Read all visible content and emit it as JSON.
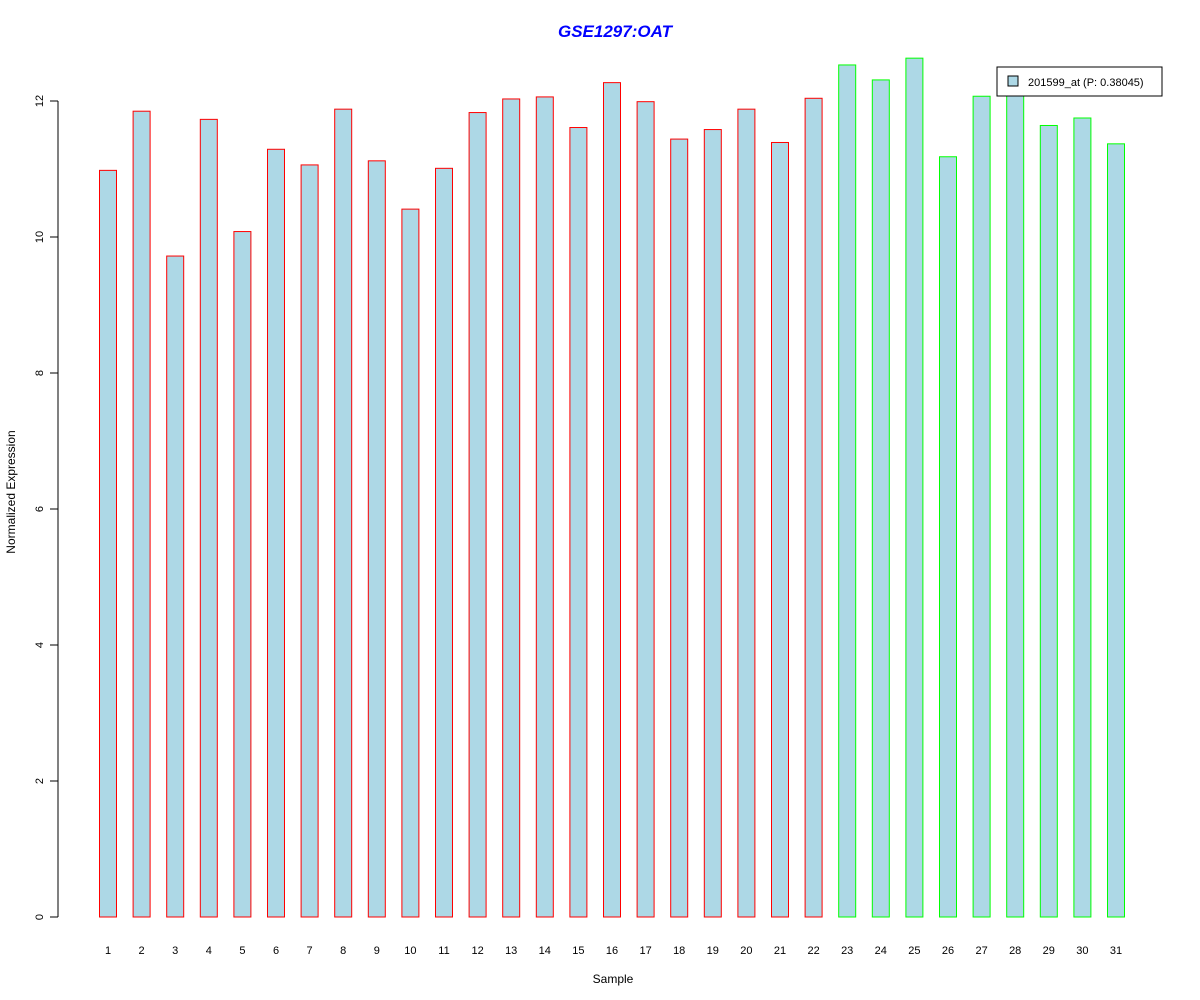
{
  "chart_data": {
    "type": "bar",
    "title": "GSE1297:OAT",
    "xlabel": "Sample",
    "ylabel": "Normalized Expression",
    "ylim": [
      0,
      12.7
    ],
    "yticks": [
      0,
      2,
      4,
      6,
      8,
      10,
      12
    ],
    "categories": [
      "1",
      "2",
      "3",
      "4",
      "5",
      "6",
      "7",
      "8",
      "9",
      "10",
      "11",
      "12",
      "13",
      "14",
      "15",
      "16",
      "17",
      "18",
      "19",
      "20",
      "21",
      "22",
      "23",
      "24",
      "25",
      "26",
      "27",
      "28",
      "29",
      "30",
      "31"
    ],
    "values": [
      10.98,
      11.85,
      9.72,
      11.73,
      10.08,
      11.29,
      11.06,
      11.88,
      11.12,
      10.41,
      11.01,
      11.83,
      12.03,
      12.06,
      11.61,
      12.27,
      11.99,
      11.44,
      11.58,
      11.88,
      11.39,
      12.04,
      12.53,
      12.31,
      12.63,
      11.18,
      12.07,
      12.16,
      11.64,
      11.75,
      11.37
    ],
    "groups": [
      "red",
      "red",
      "red",
      "red",
      "red",
      "red",
      "red",
      "red",
      "red",
      "red",
      "red",
      "red",
      "red",
      "red",
      "red",
      "red",
      "red",
      "red",
      "red",
      "red",
      "red",
      "red",
      "green",
      "green",
      "green",
      "green",
      "green",
      "green",
      "green",
      "green",
      "green"
    ],
    "colors": {
      "bar_fill": "#add8e6",
      "red_border": "#ff0000",
      "green_border": "#00ff00",
      "title": "#0000ff"
    },
    "legend": {
      "label": "201599_at (P: 0.38045)",
      "position": "top-right"
    },
    "grid": false
  }
}
